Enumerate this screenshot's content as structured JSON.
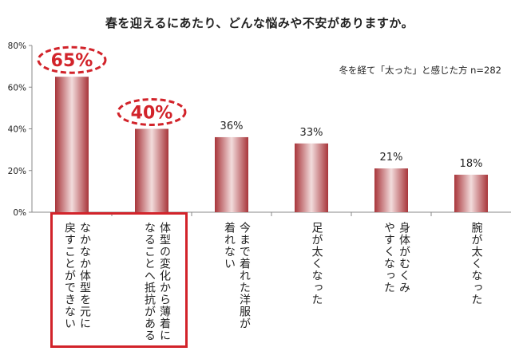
{
  "title": "春を迎えるにあたり、どんな悩みや不安がありますか。",
  "note": "冬を経て「太った」と感じた方 n=282",
  "chart_data": {
    "type": "bar",
    "title": "春を迎えるにあたり、どんな悩みや不安がありますか。",
    "categories": [
      [
        "なかなか体型を元に",
        "戻すことができない"
      ],
      [
        "体型の変化から薄着に",
        "なることへ抵抗がある"
      ],
      [
        "今まで着れた洋服が",
        "着れない"
      ],
      [
        "足が太くなった"
      ],
      [
        "身体がむくみ",
        "やすくなった"
      ],
      [
        "腕が太くなった"
      ]
    ],
    "values": [
      65,
      40,
      36,
      33,
      21,
      18
    ],
    "value_labels": [
      "65%",
      "40%",
      "36%",
      "33%",
      "21%",
      "18%"
    ],
    "highlighted": [
      true,
      true,
      false,
      false,
      false,
      false
    ],
    "ylim": [
      0,
      80
    ],
    "yticks": [
      0,
      20,
      40,
      60,
      80
    ],
    "ytick_labels": [
      "0%",
      "20%",
      "40%",
      "60%",
      "80%"
    ],
    "grid": false,
    "colors": {
      "bar_edge": "#a8353a",
      "bar_mid": "#f2dcdc",
      "highlight": "#d2232a",
      "axis": "#888888",
      "text": "#222222"
    }
  }
}
